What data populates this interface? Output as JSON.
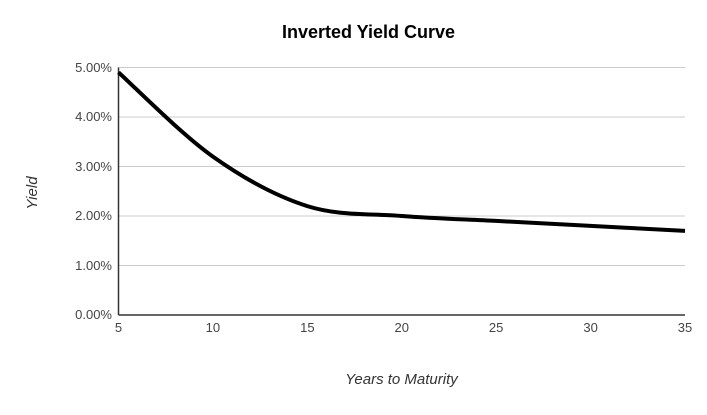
{
  "chart_data": {
    "type": "line",
    "title": "Inverted Yield Curve",
    "xlabel": "Years to Maturity",
    "ylabel": "Yield",
    "x": [
      5,
      10,
      15,
      20,
      25,
      30,
      35
    ],
    "series": [
      {
        "name": "Yield",
        "values": [
          4.9,
          3.2,
          2.2,
          2.0,
          1.9,
          1.8,
          1.7
        ]
      }
    ],
    "xlim": [
      5,
      35
    ],
    "ylim": [
      0,
      5
    ],
    "x_ticks": [
      5,
      10,
      15,
      20,
      25,
      30,
      35
    ],
    "x_tick_labels": [
      "5",
      "10",
      "15",
      "20",
      "25",
      "30",
      "35"
    ],
    "y_ticks": [
      0,
      1,
      2,
      3,
      4,
      5
    ],
    "y_tick_labels": [
      "0.00%",
      "1.00%",
      "2.00%",
      "3.00%",
      "4.00%",
      "5.00%"
    ],
    "grid": true,
    "legend": "none",
    "smooth": true,
    "line_color": "#000000",
    "line_width": 4
  },
  "colors": {
    "background": "#ffffff",
    "gridline": "#cccccc",
    "axis_line": "#333333",
    "tick_label": "#444444",
    "axis_title": "#333333",
    "title": "#000000"
  }
}
